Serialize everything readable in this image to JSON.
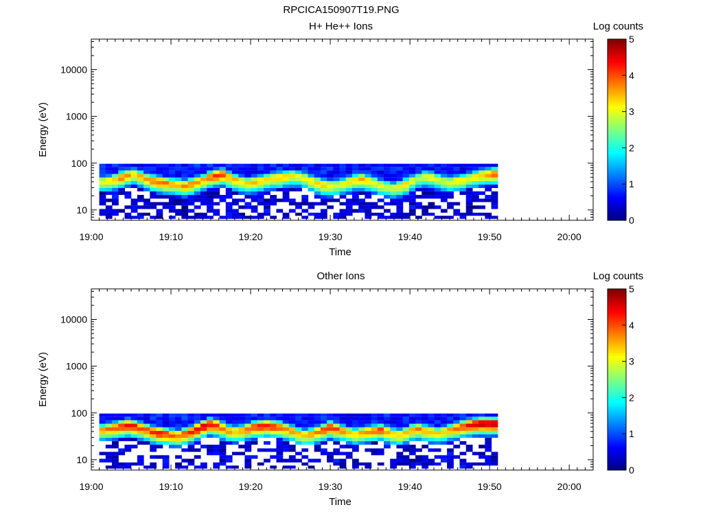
{
  "figure": {
    "title": "RPCICA150907T19.PNG"
  },
  "colors": {
    "colormap": [
      "#00007f",
      "#0000ff",
      "#007fff",
      "#00ffff",
      "#7fff7f",
      "#ffff00",
      "#ff7f00",
      "#ff0000",
      "#7f0000"
    ],
    "background": "#ffffff",
    "axes": "#000000"
  },
  "chart_data": [
    {
      "type": "heatmap",
      "title": "H+ He++ Ions",
      "xlabel": "Time",
      "ylabel": "Energy (eV)",
      "x_ticks": [
        "19:00",
        "19:10",
        "19:20",
        "19:30",
        "19:40",
        "19:50",
        "20:00"
      ],
      "xlim_minutes": [
        0,
        63
      ],
      "y_scale": "log",
      "ylim": [
        6,
        45000
      ],
      "y_ticks": [
        "10",
        "100",
        "1000",
        "10000"
      ],
      "colorbar": {
        "label": "Log counts",
        "range": [
          0,
          5
        ],
        "ticks": [
          "0",
          "1",
          "2",
          "3",
          "4",
          "5"
        ]
      },
      "data_time_range_minutes": [
        1,
        51
      ],
      "energy_bins_eV": [
        7,
        8,
        9.5,
        11.5,
        13.5,
        16,
        19,
        23,
        27,
        32,
        38,
        45,
        54,
        64,
        76,
        91
      ],
      "peak_energy_eV": [
        40,
        42,
        45,
        50,
        55,
        58,
        52,
        46,
        42,
        40,
        38,
        36,
        35,
        33,
        36,
        40,
        44,
        50,
        55,
        58,
        50,
        44,
        40,
        38,
        40,
        42,
        45,
        48,
        50,
        52,
        54,
        52,
        48,
        42,
        38,
        34,
        33,
        34,
        36,
        40,
        44,
        46,
        42,
        38,
        34,
        32,
        30,
        32,
        36,
        42,
        48,
        52,
        50,
        46,
        42,
        40,
        42,
        44,
        48,
        52,
        56,
        58,
        60
      ],
      "peak_log_counts": [
        3.0,
        3.2,
        3.4,
        3.8,
        3.6,
        3.4,
        3.5,
        3.6,
        3.8,
        3.9,
        3.8,
        3.6,
        3.5,
        3.7,
        3.8,
        3.6,
        3.5,
        3.8,
        4.2,
        4.0,
        3.6,
        3.4,
        3.2,
        3.3,
        3.4,
        3.3,
        3.2,
        3.4,
        3.5,
        3.3,
        3.2,
        3.0,
        3.1,
        3.3,
        3.4,
        3.5,
        3.2,
        3.0,
        3.1,
        3.2,
        3.3,
        3.6,
        3.4,
        3.1,
        3.0,
        2.9,
        3.0,
        3.2,
        3.4,
        3.0,
        2.8,
        2.9,
        3.1,
        3.0,
        2.9,
        3.0,
        3.2,
        3.1,
        3.0,
        3.2,
        3.4,
        3.6,
        3.9
      ]
    },
    {
      "type": "heatmap",
      "title": "Other Ions",
      "xlabel": "Time",
      "ylabel": "Energy (eV)",
      "x_ticks": [
        "19:00",
        "19:10",
        "19:20",
        "19:30",
        "19:40",
        "19:50",
        "20:00"
      ],
      "xlim_minutes": [
        0,
        63
      ],
      "y_scale": "log",
      "ylim": [
        6,
        45000
      ],
      "y_ticks": [
        "10",
        "100",
        "1000",
        "10000"
      ],
      "colorbar": {
        "label": "Log counts",
        "range": [
          0,
          5
        ],
        "ticks": [
          "0",
          "1",
          "2",
          "3",
          "4",
          "5"
        ]
      },
      "data_time_range_minutes": [
        1,
        51
      ],
      "energy_bins_eV": [
        7,
        8,
        9.5,
        11.5,
        13.5,
        16,
        19,
        23,
        27,
        32,
        38,
        45,
        54,
        64,
        76,
        91
      ],
      "peak_energy_eV": [
        44,
        46,
        48,
        52,
        55,
        52,
        48,
        44,
        40,
        38,
        36,
        34,
        33,
        36,
        40,
        46,
        52,
        58,
        55,
        48,
        42,
        40,
        42,
        46,
        50,
        52,
        54,
        52,
        50,
        46,
        42,
        36,
        34,
        36,
        40,
        44,
        50,
        46,
        42,
        38,
        36,
        38,
        40,
        42,
        44,
        40,
        36,
        34,
        38,
        44,
        46,
        42,
        40,
        38,
        40,
        44,
        48,
        52,
        56,
        58,
        60,
        60,
        60
      ],
      "peak_log_counts": [
        3.6,
        3.8,
        4.0,
        4.2,
        4.4,
        4.3,
        4.1,
        4.0,
        4.2,
        4.3,
        4.1,
        4.0,
        3.8,
        4.0,
        4.2,
        4.4,
        4.6,
        4.4,
        4.3,
        3.9,
        3.6,
        3.5,
        3.7,
        3.9,
        4.1,
        4.2,
        4.3,
        4.2,
        4.0,
        3.8,
        3.6,
        3.5,
        3.4,
        3.6,
        3.8,
        4.0,
        4.3,
        4.0,
        3.7,
        3.5,
        3.4,
        3.6,
        3.7,
        3.8,
        4.0,
        3.7,
        3.4,
        3.3,
        3.5,
        3.6,
        3.8,
        3.6,
        3.4,
        3.3,
        3.4,
        3.6,
        3.9,
        4.1,
        4.4,
        4.6,
        4.7,
        4.7,
        4.7
      ]
    }
  ]
}
